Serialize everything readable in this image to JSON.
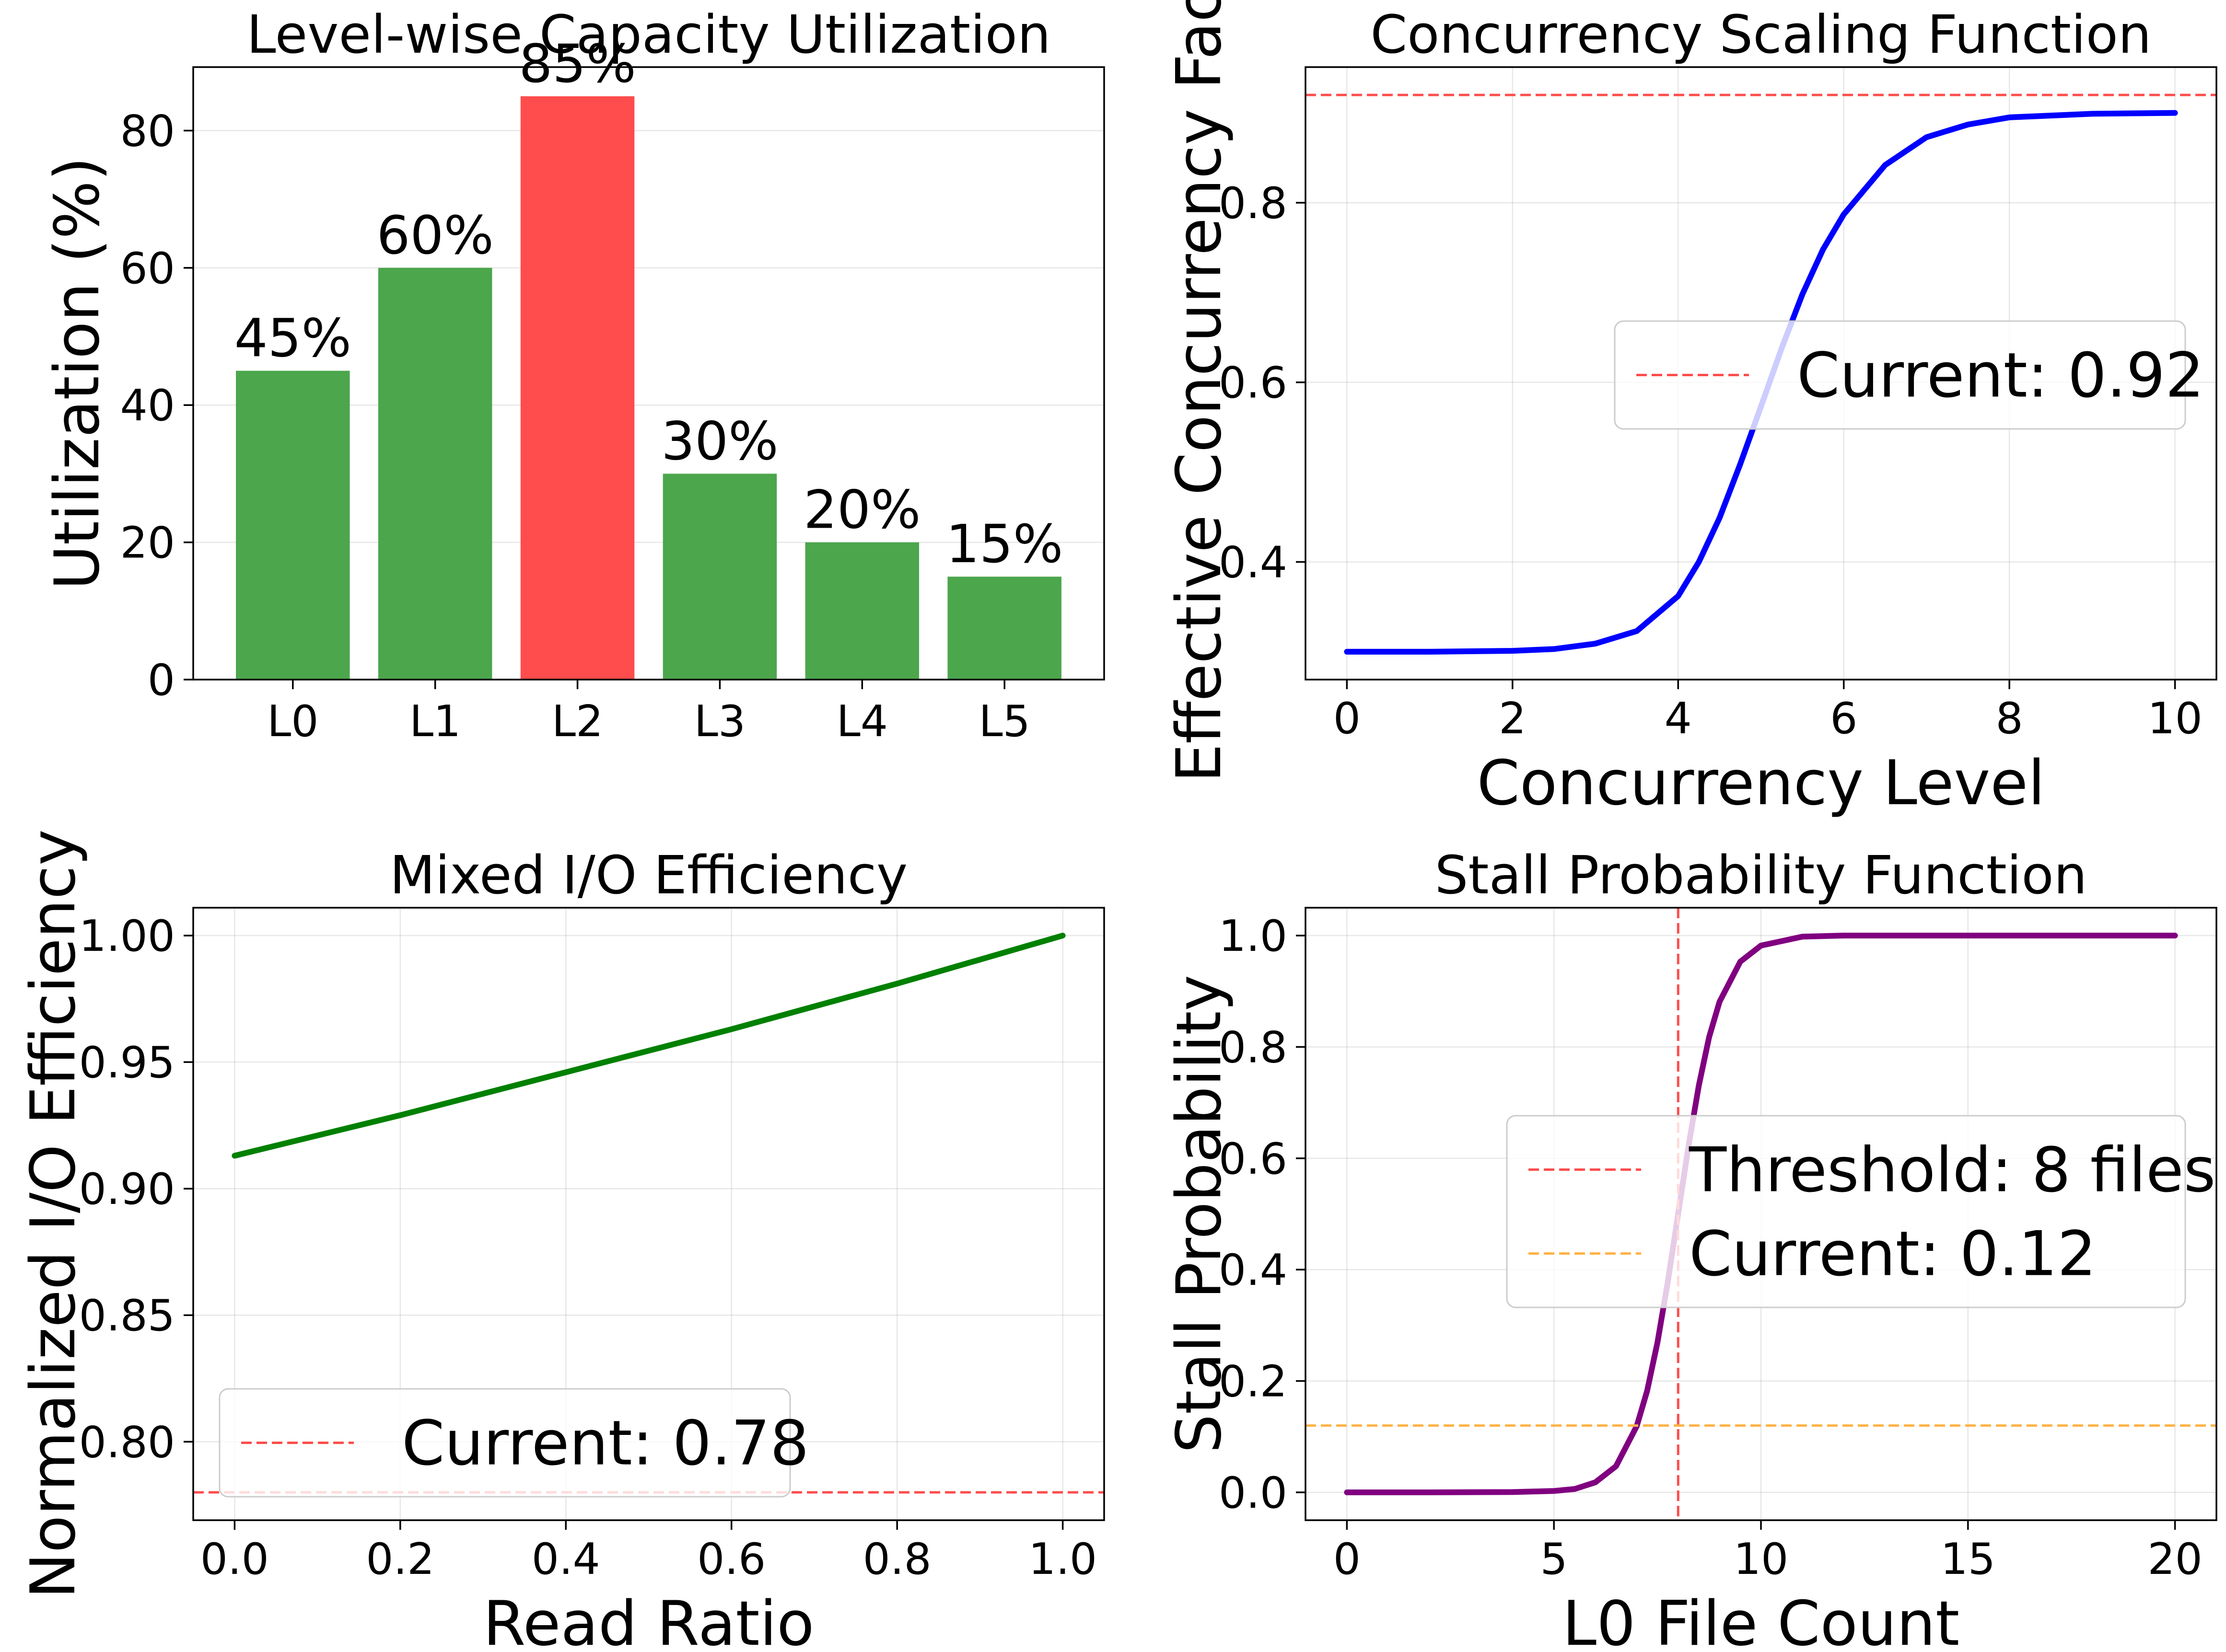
{
  "chart_data": [
    {
      "type": "bar",
      "title": "Level-wise Capacity Utilization",
      "xlabel": "",
      "ylabel": "Utilization (%)",
      "categories": [
        "L0",
        "L1",
        "L2",
        "L3",
        "L4",
        "L5"
      ],
      "values": [
        45,
        60,
        85,
        30,
        20,
        15
      ],
      "bar_labels": [
        "45%",
        "60%",
        "85%",
        "30%",
        "20%",
        "15%"
      ],
      "bar_colors": [
        "#4ca64c",
        "#4ca64c",
        "#ff4c4c",
        "#4ca64c",
        "#4ca64c",
        "#4ca64c"
      ],
      "ylim": [
        0,
        89.25
      ],
      "yticks": [
        0,
        20,
        40,
        60,
        80
      ],
      "ytick_labels": [
        "0",
        "20",
        "40",
        "60",
        "80"
      ],
      "grid": true
    },
    {
      "type": "line",
      "title": "Concurrency Scaling Function",
      "xlabel": "Concurrency Level",
      "ylabel": "Effective Concurrency Fact",
      "xlim": [
        -0.5,
        10.5
      ],
      "ylim": [
        0.269,
        0.951
      ],
      "xticks": [
        0,
        2,
        4,
        6,
        8,
        10
      ],
      "xtick_labels": [
        "0",
        "2",
        "4",
        "6",
        "8",
        "10"
      ],
      "yticks": [
        0.4,
        0.6,
        0.8
      ],
      "ytick_labels": [
        "0.4",
        "0.6",
        "0.8"
      ],
      "series": [
        {
          "color": "#0000ff",
          "x": [
            0,
            1,
            2,
            2.5,
            3,
            3.5,
            4,
            4.25,
            4.5,
            4.75,
            5,
            5.25,
            5.5,
            5.75,
            6,
            6.5,
            7,
            7.5,
            8,
            9,
            10
          ],
          "y": [
            0.3,
            0.3,
            0.301,
            0.303,
            0.309,
            0.323,
            0.362,
            0.4,
            0.449,
            0.509,
            0.573,
            0.638,
            0.698,
            0.748,
            0.787,
            0.842,
            0.873,
            0.887,
            0.895,
            0.899,
            0.9
          ]
        }
      ],
      "reference_lines": [
        {
          "orientation": "horizontal",
          "value": 0.92,
          "color": "#ff4c4c",
          "label": "Current: 0.92"
        }
      ],
      "legend": {
        "position": "center-right",
        "entries": [
          "Current: 0.92"
        ]
      },
      "grid": true
    },
    {
      "type": "line",
      "title": "Mixed I/O Efficiency",
      "xlabel": "Read Ratio",
      "ylabel": "Normalized I/O Efficiency",
      "xlim": [
        -0.05,
        1.05
      ],
      "ylim": [
        0.769,
        1.011
      ],
      "xticks": [
        0.0,
        0.2,
        0.4,
        0.6,
        0.8,
        1.0
      ],
      "xtick_labels": [
        "0.0",
        "0.2",
        "0.4",
        "0.6",
        "0.8",
        "1.0"
      ],
      "yticks": [
        0.8,
        0.85,
        0.9,
        0.95,
        1.0
      ],
      "ytick_labels": [
        "0.80",
        "0.85",
        "0.90",
        "0.95",
        "1.00"
      ],
      "series": [
        {
          "color": "#008000",
          "x": [
            0.0,
            0.2,
            0.4,
            0.6,
            0.8,
            1.0
          ],
          "y": [
            0.913,
            0.929,
            0.946,
            0.963,
            0.981,
            1.0
          ]
        }
      ],
      "reference_lines": [
        {
          "orientation": "horizontal",
          "value": 0.78,
          "color": "#ff4c4c",
          "label": "Current: 0.78"
        }
      ],
      "legend": {
        "position": "lower-left",
        "entries": [
          "Current: 0.78"
        ]
      },
      "grid": true
    },
    {
      "type": "line",
      "title": "Stall Probability Function",
      "xlabel": "L0 File Count",
      "ylabel": "Stall Probability",
      "xlim": [
        -1,
        21
      ],
      "ylim": [
        -0.05,
        1.05
      ],
      "xticks": [
        0,
        5,
        10,
        15,
        20
      ],
      "xtick_labels": [
        "0",
        "5",
        "10",
        "15",
        "20"
      ],
      "yticks": [
        0.0,
        0.2,
        0.4,
        0.6,
        0.8,
        1.0
      ],
      "ytick_labels": [
        "0.0",
        "0.2",
        "0.4",
        "0.6",
        "0.8",
        "1.0"
      ],
      "series": [
        {
          "color": "#800080",
          "x": [
            0,
            2,
            4,
            5,
            5.5,
            6,
            6.5,
            7,
            7.25,
            7.5,
            7.75,
            8,
            8.25,
            8.5,
            8.75,
            9,
            9.5,
            10,
            11,
            12,
            14,
            20
          ],
          "y": [
            0.0,
            0.0,
            0.0005,
            0.0025,
            0.006,
            0.018,
            0.047,
            0.119,
            0.182,
            0.269,
            0.378,
            0.5,
            0.622,
            0.731,
            0.818,
            0.881,
            0.953,
            0.982,
            0.998,
            1.0,
            1.0,
            1.0
          ]
        }
      ],
      "reference_lines": [
        {
          "orientation": "vertical",
          "value": 8,
          "color": "#ff4c4c",
          "label": "Threshold: 8 files"
        },
        {
          "orientation": "horizontal",
          "value": 0.12,
          "color": "#ffb347",
          "label": "Current: 0.12"
        }
      ],
      "legend": {
        "position": "center-right",
        "entries": [
          "Threshold: 8 files",
          "Current: 0.12"
        ]
      },
      "grid": true
    }
  ]
}
